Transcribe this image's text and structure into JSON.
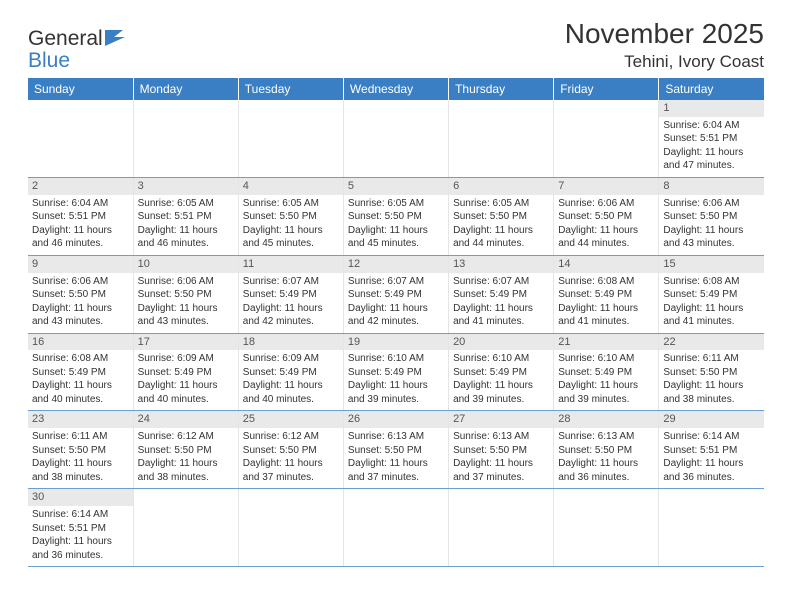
{
  "logo": {
    "text1": "General",
    "text2": "Blue"
  },
  "title": "November 2025",
  "location": "Tehini, Ivory Coast",
  "colors": {
    "header_bg": "#3a7fc4",
    "header_text": "#ffffff",
    "daynum_bg": "#e9e9e9",
    "row_border": "#6a9fd0",
    "text": "#333333"
  },
  "weekdays": [
    "Sunday",
    "Monday",
    "Tuesday",
    "Wednesday",
    "Thursday",
    "Friday",
    "Saturday"
  ],
  "weeks": [
    [
      null,
      null,
      null,
      null,
      null,
      null,
      {
        "n": "1",
        "sr": "6:04 AM",
        "ss": "5:51 PM",
        "dl": "11 hours and 47 minutes."
      }
    ],
    [
      {
        "n": "2",
        "sr": "6:04 AM",
        "ss": "5:51 PM",
        "dl": "11 hours and 46 minutes."
      },
      {
        "n": "3",
        "sr": "6:05 AM",
        "ss": "5:51 PM",
        "dl": "11 hours and 46 minutes."
      },
      {
        "n": "4",
        "sr": "6:05 AM",
        "ss": "5:50 PM",
        "dl": "11 hours and 45 minutes."
      },
      {
        "n": "5",
        "sr": "6:05 AM",
        "ss": "5:50 PM",
        "dl": "11 hours and 45 minutes."
      },
      {
        "n": "6",
        "sr": "6:05 AM",
        "ss": "5:50 PM",
        "dl": "11 hours and 44 minutes."
      },
      {
        "n": "7",
        "sr": "6:06 AM",
        "ss": "5:50 PM",
        "dl": "11 hours and 44 minutes."
      },
      {
        "n": "8",
        "sr": "6:06 AM",
        "ss": "5:50 PM",
        "dl": "11 hours and 43 minutes."
      }
    ],
    [
      {
        "n": "9",
        "sr": "6:06 AM",
        "ss": "5:50 PM",
        "dl": "11 hours and 43 minutes."
      },
      {
        "n": "10",
        "sr": "6:06 AM",
        "ss": "5:50 PM",
        "dl": "11 hours and 43 minutes."
      },
      {
        "n": "11",
        "sr": "6:07 AM",
        "ss": "5:49 PM",
        "dl": "11 hours and 42 minutes."
      },
      {
        "n": "12",
        "sr": "6:07 AM",
        "ss": "5:49 PM",
        "dl": "11 hours and 42 minutes."
      },
      {
        "n": "13",
        "sr": "6:07 AM",
        "ss": "5:49 PM",
        "dl": "11 hours and 41 minutes."
      },
      {
        "n": "14",
        "sr": "6:08 AM",
        "ss": "5:49 PM",
        "dl": "11 hours and 41 minutes."
      },
      {
        "n": "15",
        "sr": "6:08 AM",
        "ss": "5:49 PM",
        "dl": "11 hours and 41 minutes."
      }
    ],
    [
      {
        "n": "16",
        "sr": "6:08 AM",
        "ss": "5:49 PM",
        "dl": "11 hours and 40 minutes."
      },
      {
        "n": "17",
        "sr": "6:09 AM",
        "ss": "5:49 PM",
        "dl": "11 hours and 40 minutes."
      },
      {
        "n": "18",
        "sr": "6:09 AM",
        "ss": "5:49 PM",
        "dl": "11 hours and 40 minutes."
      },
      {
        "n": "19",
        "sr": "6:10 AM",
        "ss": "5:49 PM",
        "dl": "11 hours and 39 minutes."
      },
      {
        "n": "20",
        "sr": "6:10 AM",
        "ss": "5:49 PM",
        "dl": "11 hours and 39 minutes."
      },
      {
        "n": "21",
        "sr": "6:10 AM",
        "ss": "5:49 PM",
        "dl": "11 hours and 39 minutes."
      },
      {
        "n": "22",
        "sr": "6:11 AM",
        "ss": "5:50 PM",
        "dl": "11 hours and 38 minutes."
      }
    ],
    [
      {
        "n": "23",
        "sr": "6:11 AM",
        "ss": "5:50 PM",
        "dl": "11 hours and 38 minutes."
      },
      {
        "n": "24",
        "sr": "6:12 AM",
        "ss": "5:50 PM",
        "dl": "11 hours and 38 minutes."
      },
      {
        "n": "25",
        "sr": "6:12 AM",
        "ss": "5:50 PM",
        "dl": "11 hours and 37 minutes."
      },
      {
        "n": "26",
        "sr": "6:13 AM",
        "ss": "5:50 PM",
        "dl": "11 hours and 37 minutes."
      },
      {
        "n": "27",
        "sr": "6:13 AM",
        "ss": "5:50 PM",
        "dl": "11 hours and 37 minutes."
      },
      {
        "n": "28",
        "sr": "6:13 AM",
        "ss": "5:50 PM",
        "dl": "11 hours and 36 minutes."
      },
      {
        "n": "29",
        "sr": "6:14 AM",
        "ss": "5:51 PM",
        "dl": "11 hours and 36 minutes."
      }
    ],
    [
      {
        "n": "30",
        "sr": "6:14 AM",
        "ss": "5:51 PM",
        "dl": "11 hours and 36 minutes."
      },
      null,
      null,
      null,
      null,
      null,
      null
    ]
  ],
  "labels": {
    "sunrise": "Sunrise: ",
    "sunset": "Sunset: ",
    "daylight": "Daylight: "
  }
}
